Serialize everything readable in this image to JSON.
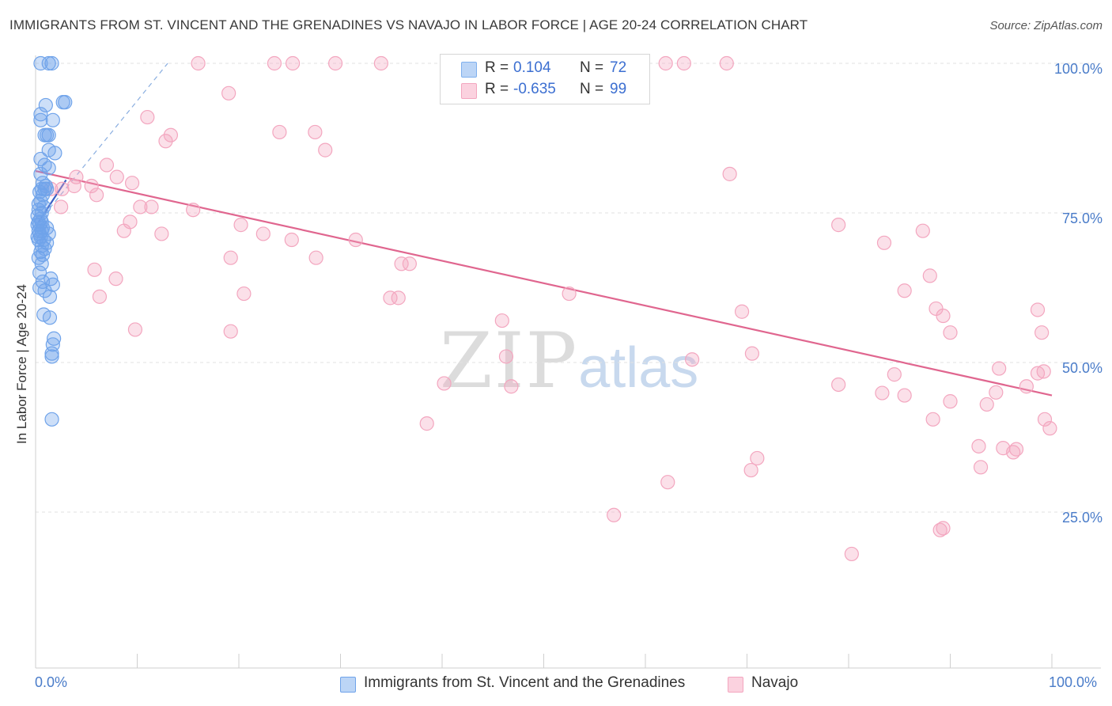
{
  "chart_data": {
    "type": "scatter",
    "title": "IMMIGRANTS FROM ST. VINCENT AND THE GRENADINES VS NAVAJO IN LABOR FORCE | AGE 20-24 CORRELATION CHART",
    "source": "Source: ZipAtlas.com",
    "xlabel": "",
    "ylabel": "In Labor Force | Age 20-24",
    "xlim": [
      0,
      100
    ],
    "ylim": [
      0,
      100
    ],
    "x_tick_labels": [
      "0.0%",
      "100.0%"
    ],
    "y_tick_labels": [
      {
        "value": 25,
        "label": "25.0%"
      },
      {
        "value": 50,
        "label": "50.0%"
      },
      {
        "value": 75,
        "label": "75.0%"
      },
      {
        "value": 100,
        "label": "100.0%"
      }
    ],
    "grid": true,
    "watermark": {
      "zip": "ZIP",
      "atlas": "atlas"
    },
    "stats": [
      {
        "r_label": "R =",
        "r": "0.104",
        "n_label": "N =",
        "n": "72",
        "color": "#7fb0ee"
      },
      {
        "r_label": "R =",
        "r": "-0.635",
        "n_label": "N =",
        "n": "99",
        "color": "#f3a6bf"
      }
    ],
    "series": [
      {
        "name": "Immigrants from St. Vincent and the Grenadines",
        "color": "#6fa3ea",
        "trend": {
          "x": [
            0.3,
            3.0
          ],
          "y": [
            73.5,
            80.5
          ],
          "color": "#3b5fc4"
        },
        "trend_ext": {
          "x": [
            0.3,
            13.0
          ],
          "y": [
            73.5,
            100
          ],
          "color": "#8aaee0"
        },
        "points": [
          [
            0.5,
            100
          ],
          [
            1.3,
            100
          ],
          [
            1.6,
            100
          ],
          [
            2.7,
            93.5
          ],
          [
            2.9,
            93.5
          ],
          [
            1.0,
            93.0
          ],
          [
            0.5,
            91.5
          ],
          [
            0.5,
            90.5
          ],
          [
            1.7,
            90.5
          ],
          [
            0.9,
            88.0
          ],
          [
            1.3,
            88.0
          ],
          [
            1.1,
            88.0
          ],
          [
            1.3,
            85.5
          ],
          [
            1.9,
            85.0
          ],
          [
            0.5,
            84.0
          ],
          [
            0.9,
            83.0
          ],
          [
            1.3,
            82.5
          ],
          [
            0.5,
            81.5
          ],
          [
            0.7,
            80.0
          ],
          [
            1.0,
            79.5
          ],
          [
            0.6,
            79.0
          ],
          [
            0.9,
            79.0
          ],
          [
            1.1,
            79.0
          ],
          [
            0.4,
            78.5
          ],
          [
            0.7,
            78.0
          ],
          [
            0.5,
            77.0
          ],
          [
            0.3,
            76.5
          ],
          [
            0.8,
            76.0
          ],
          [
            0.3,
            75.5
          ],
          [
            0.6,
            75.0
          ],
          [
            0.2,
            74.5
          ],
          [
            0.5,
            74.0
          ],
          [
            0.3,
            73.5
          ],
          [
            0.6,
            73.5
          ],
          [
            0.2,
            73.0
          ],
          [
            0.4,
            73.0
          ],
          [
            0.7,
            72.5
          ],
          [
            1.1,
            72.5
          ],
          [
            0.3,
            72.0
          ],
          [
            0.6,
            72.0
          ],
          [
            1.3,
            71.5
          ],
          [
            0.4,
            71.5
          ],
          [
            0.2,
            71.0
          ],
          [
            0.5,
            71.0
          ],
          [
            0.8,
            70.5
          ],
          [
            0.3,
            70.5
          ],
          [
            1.1,
            70.0
          ],
          [
            0.6,
            69.5
          ],
          [
            0.9,
            69.0
          ],
          [
            0.5,
            68.5
          ],
          [
            0.7,
            68.0
          ],
          [
            0.3,
            67.5
          ],
          [
            0.6,
            66.5
          ],
          [
            0.4,
            65.0
          ],
          [
            1.5,
            64.0
          ],
          [
            0.7,
            63.5
          ],
          [
            1.7,
            63.0
          ],
          [
            0.4,
            62.5
          ],
          [
            0.9,
            62.0
          ],
          [
            1.4,
            61.0
          ],
          [
            0.8,
            58.0
          ],
          [
            1.4,
            57.5
          ],
          [
            1.8,
            54.0
          ],
          [
            1.7,
            53.0
          ],
          [
            1.6,
            51.5
          ],
          [
            1.6,
            51.0
          ],
          [
            1.6,
            40.5
          ]
        ]
      },
      {
        "name": "Navajo",
        "color": "#f3a6bf",
        "trend": {
          "x": [
            0,
            100
          ],
          "y": [
            82.0,
            44.5
          ],
          "color": "#e0668f"
        },
        "points": [
          [
            16.0,
            100
          ],
          [
            23.5,
            100
          ],
          [
            25.3,
            100
          ],
          [
            29.5,
            100
          ],
          [
            34.0,
            100
          ],
          [
            53.5,
            100
          ],
          [
            62.0,
            100
          ],
          [
            63.8,
            100
          ],
          [
            68.0,
            100
          ],
          [
            19.0,
            95.0
          ],
          [
            11.0,
            91.0
          ],
          [
            13.3,
            88.0
          ],
          [
            12.8,
            87.0
          ],
          [
            24.0,
            88.5
          ],
          [
            27.5,
            88.5
          ],
          [
            28.5,
            85.5
          ],
          [
            68.3,
            81.5
          ],
          [
            7.0,
            83.0
          ],
          [
            4.0,
            81.0
          ],
          [
            3.8,
            79.5
          ],
          [
            2.6,
            79.0
          ],
          [
            1.5,
            79.0
          ],
          [
            5.5,
            79.5
          ],
          [
            8.0,
            81.0
          ],
          [
            9.5,
            80.0
          ],
          [
            6.0,
            78.0
          ],
          [
            2.5,
            76.0
          ],
          [
            10.3,
            76.0
          ],
          [
            11.4,
            76.0
          ],
          [
            15.5,
            75.5
          ],
          [
            9.3,
            73.5
          ],
          [
            8.7,
            72.0
          ],
          [
            12.4,
            71.5
          ],
          [
            20.2,
            73.0
          ],
          [
            22.4,
            71.5
          ],
          [
            25.2,
            70.5
          ],
          [
            31.5,
            70.5
          ],
          [
            79.0,
            73.0
          ],
          [
            83.5,
            70.0
          ],
          [
            87.3,
            72.0
          ],
          [
            19.2,
            67.5
          ],
          [
            27.6,
            67.5
          ],
          [
            36.0,
            66.5
          ],
          [
            36.8,
            66.5
          ],
          [
            5.8,
            65.5
          ],
          [
            7.9,
            64.0
          ],
          [
            88.0,
            64.5
          ],
          [
            20.5,
            61.5
          ],
          [
            6.3,
            61.0
          ],
          [
            34.9,
            60.8
          ],
          [
            35.7,
            60.8
          ],
          [
            52.5,
            61.5
          ],
          [
            85.5,
            62.0
          ],
          [
            88.6,
            59.0
          ],
          [
            98.6,
            58.8
          ],
          [
            69.5,
            58.5
          ],
          [
            89.3,
            57.8
          ],
          [
            45.9,
            57.0
          ],
          [
            9.8,
            55.5
          ],
          [
            19.2,
            55.2
          ],
          [
            90.0,
            55.0
          ],
          [
            99.0,
            55.0
          ],
          [
            46.3,
            51.0
          ],
          [
            64.6,
            50.5
          ],
          [
            70.5,
            51.5
          ],
          [
            94.8,
            49.0
          ],
          [
            98.6,
            48.2
          ],
          [
            99.2,
            48.5
          ],
          [
            84.5,
            48.0
          ],
          [
            40.2,
            46.5
          ],
          [
            46.8,
            46.0
          ],
          [
            79.0,
            46.3
          ],
          [
            85.5,
            44.5
          ],
          [
            83.3,
            44.9
          ],
          [
            94.5,
            45.0
          ],
          [
            97.5,
            46.0
          ],
          [
            90.0,
            43.5
          ],
          [
            93.6,
            43.0
          ],
          [
            88.3,
            40.5
          ],
          [
            38.5,
            39.8
          ],
          [
            99.3,
            40.5
          ],
          [
            99.8,
            39.0
          ],
          [
            92.8,
            36.0
          ],
          [
            95.2,
            35.7
          ],
          [
            96.2,
            35.0
          ],
          [
            96.5,
            35.5
          ],
          [
            71.0,
            34.0
          ],
          [
            70.4,
            32.0
          ],
          [
            93.0,
            32.5
          ],
          [
            62.2,
            30.0
          ],
          [
            56.9,
            24.5
          ],
          [
            89.0,
            22.0
          ],
          [
            89.3,
            22.3
          ],
          [
            80.3,
            18.0
          ]
        ]
      }
    ]
  }
}
